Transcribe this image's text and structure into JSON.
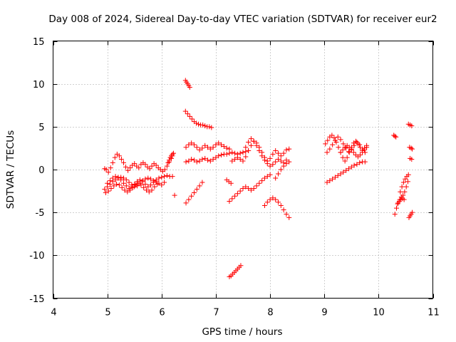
{
  "chart_data": {
    "type": "scatter",
    "title": "Day 008 of 2024, Sidereal Day-to-day VTEC variation (SDTVAR) for receiver eur2",
    "xlabel": "GPS time / hours",
    "ylabel": "SDTVAR / TECUs",
    "xlim": [
      4,
      11
    ],
    "ylim": [
      -15,
      15
    ],
    "xticks": [
      "4",
      "5",
      "6",
      "7",
      "8",
      "9",
      "10",
      "11"
    ],
    "yticks": [
      "-15",
      "-10",
      "-5",
      "0",
      "5",
      "10",
      "15"
    ],
    "grid": true,
    "marker": "plus",
    "color": "#ff0000",
    "series": [
      {
        "x": [
          4.95,
          4.98,
          5.02,
          5.06,
          5.1,
          5.14,
          5.18,
          5.22,
          5.26,
          5.3,
          5.34,
          5.38,
          5.42,
          5.46,
          5.5,
          5.54,
          5.58,
          5.62,
          5.66,
          5.7,
          5.74,
          5.78,
          5.82,
          5.86,
          5.9,
          5.94,
          5.98,
          6.02,
          6.06,
          6.1,
          6.14,
          6.18,
          6.2
        ],
        "y": [
          0.1,
          0.0,
          -0.3,
          0.2,
          0.8,
          1.4,
          1.8,
          1.6,
          1.2,
          0.8,
          0.3,
          -0.1,
          0.2,
          0.5,
          0.7,
          0.4,
          0.2,
          0.6,
          0.8,
          0.6,
          0.3,
          0.1,
          0.4,
          0.7,
          0.5,
          0.2,
          0.0,
          -0.2,
          0.0,
          0.4,
          0.9,
          1.3,
          1.6
        ]
      },
      {
        "x": [
          4.95,
          5.0,
          5.05,
          5.1,
          5.15,
          5.2,
          5.25,
          5.3,
          5.35,
          5.4,
          5.45,
          5.5,
          5.55,
          5.6,
          5.65,
          5.7,
          5.75,
          5.8,
          5.85,
          5.9,
          5.95,
          6.0,
          6.05,
          6.1,
          6.15,
          6.2
        ],
        "y": [
          -2.3,
          -2.0,
          -1.7,
          -1.4,
          -1.2,
          -1.0,
          -0.9,
          -1.0,
          -1.2,
          -1.5,
          -1.8,
          -2.0,
          -1.9,
          -1.6,
          -1.3,
          -1.1,
          -1.0,
          -1.1,
          -1.3,
          -1.2,
          -1.0,
          -0.9,
          -0.8,
          -0.7,
          -0.8,
          -0.8
        ]
      },
      {
        "x": [
          4.97,
          5.02,
          5.07,
          5.12,
          5.17,
          5.22,
          5.27,
          5.32,
          5.37,
          5.42,
          5.47,
          5.52,
          5.57,
          5.62,
          5.67,
          5.72,
          5.77,
          5.82,
          5.87,
          5.92
        ],
        "y": [
          -2.7,
          -2.5,
          -2.2,
          -1.9,
          -1.7,
          -1.8,
          -2.1,
          -2.4,
          -2.6,
          -2.4,
          -2.1,
          -1.8,
          -1.6,
          -1.8,
          -2.1,
          -2.4,
          -2.6,
          -2.4,
          -2.0,
          -1.7
        ]
      },
      {
        "x": [
          5.0,
          5.05,
          5.1,
          5.15,
          5.2,
          5.25,
          5.3,
          5.35,
          5.4,
          5.45,
          5.5,
          5.55,
          5.6,
          5.65,
          5.7,
          5.75,
          5.8,
          5.85,
          5.9,
          5.95,
          6.0,
          6.05
        ],
        "y": [
          -1.6,
          -1.3,
          -1.0,
          -0.8,
          -0.9,
          -1.2,
          -1.6,
          -1.9,
          -2.2,
          -2.0,
          -1.7,
          -1.4,
          -1.2,
          -1.4,
          -1.7,
          -2.0,
          -1.8,
          -1.5,
          -1.4,
          -1.6,
          -1.8,
          -1.5
        ]
      },
      {
        "x": [
          6.12,
          6.14,
          6.16,
          6.18,
          6.2,
          6.22
        ],
        "y": [
          0.8,
          1.1,
          1.4,
          1.6,
          1.8,
          1.9
        ]
      },
      {
        "x": [
          6.24
        ],
        "y": [
          -3.0
        ]
      },
      {
        "x": [
          6.44,
          6.46,
          6.48,
          6.5,
          6.52
        ],
        "y": [
          10.4,
          10.2,
          10.0,
          9.8,
          9.6
        ]
      },
      {
        "x": [
          6.44,
          6.48,
          6.52,
          6.56,
          6.6,
          6.64,
          6.68,
          6.72,
          6.76,
          6.8,
          6.84,
          6.88,
          6.92
        ],
        "y": [
          6.8,
          6.5,
          6.2,
          5.9,
          5.6,
          5.4,
          5.3,
          5.2,
          5.2,
          5.1,
          5.0,
          5.0,
          4.9
        ]
      },
      {
        "x": [
          6.45,
          6.5,
          6.55,
          6.6,
          6.65,
          6.7,
          6.75,
          6.8,
          6.85,
          6.9,
          6.95,
          7.0,
          7.05,
          7.1,
          7.15,
          7.2,
          7.25
        ],
        "y": [
          2.6,
          2.9,
          3.1,
          2.9,
          2.6,
          2.3,
          2.5,
          2.8,
          2.6,
          2.4,
          2.6,
          2.9,
          3.1,
          2.9,
          2.7,
          2.5,
          2.4
        ]
      },
      {
        "x": [
          6.45,
          6.5,
          6.55,
          6.6,
          6.65,
          6.7,
          6.75,
          6.8,
          6.85,
          6.9,
          6.95,
          7.0,
          7.05,
          7.1,
          7.15,
          7.2,
          7.25,
          7.3,
          7.35,
          7.4,
          7.45,
          7.5,
          7.55,
          7.6
        ],
        "y": [
          0.9,
          1.0,
          1.2,
          1.1,
          0.9,
          1.0,
          1.2,
          1.3,
          1.1,
          1.0,
          1.2,
          1.4,
          1.6,
          1.7,
          1.8,
          1.8,
          1.9,
          2.0,
          1.9,
          1.8,
          1.9,
          2.0,
          2.1,
          2.2
        ]
      },
      {
        "x": [
          6.45,
          6.5,
          6.55,
          6.6,
          6.65,
          6.7,
          6.75
        ],
        "y": [
          -3.9,
          -3.5,
          -3.1,
          -2.7,
          -2.3,
          -1.9,
          -1.5
        ]
      },
      {
        "x": [
          7.2,
          7.24,
          7.28
        ],
        "y": [
          -1.2,
          -1.4,
          -1.6
        ]
      },
      {
        "x": [
          7.25,
          7.3,
          7.35,
          7.4,
          7.45,
          7.5,
          7.55,
          7.6,
          7.65,
          7.7,
          7.75,
          7.8,
          7.85,
          7.9,
          7.95,
          8.0
        ],
        "y": [
          -3.7,
          -3.4,
          -3.1,
          -2.8,
          -2.5,
          -2.2,
          -2.0,
          -2.2,
          -2.4,
          -2.2,
          -1.9,
          -1.6,
          -1.3,
          -1.0,
          -0.8,
          -0.6
        ]
      },
      {
        "x": [
          7.25,
          7.28,
          7.31,
          7.34,
          7.37,
          7.4,
          7.43,
          7.46
        ],
        "y": [
          -12.5,
          -12.4,
          -12.2,
          -12.0,
          -11.8,
          -11.6,
          -11.4,
          -11.2
        ]
      },
      {
        "x": [
          7.3,
          7.35,
          7.4,
          7.45,
          7.5,
          7.55,
          7.6,
          7.65,
          7.7,
          7.75,
          7.8,
          7.85,
          7.9,
          7.95,
          8.0,
          8.05,
          8.1,
          8.15,
          8.2,
          8.25,
          8.3,
          8.35
        ],
        "y": [
          1.0,
          1.2,
          1.4,
          1.2,
          1.0,
          1.5,
          2.2,
          2.8,
          3.3,
          3.1,
          2.6,
          2.0,
          1.4,
          1.0,
          1.3,
          1.8,
          2.2,
          1.9,
          1.6,
          1.9,
          2.3,
          2.4
        ]
      },
      {
        "x": [
          7.5,
          7.55,
          7.6,
          7.65,
          7.7,
          7.75,
          7.8,
          7.85,
          7.9,
          7.95,
          8.0,
          8.05,
          8.1,
          8.15,
          8.2,
          8.25,
          8.3
        ],
        "y": [
          2.0,
          2.6,
          3.2,
          3.6,
          3.3,
          2.8,
          2.2,
          1.6,
          1.1,
          0.7,
          0.4,
          0.6,
          0.9,
          1.2,
          1.0,
          0.8,
          1.1
        ]
      },
      {
        "x": [
          7.9,
          7.95,
          8.0,
          8.05,
          8.1,
          8.15,
          8.2,
          8.25,
          8.3,
          8.35
        ],
        "y": [
          -4.2,
          -3.8,
          -3.5,
          -3.3,
          -3.5,
          -3.8,
          -4.2,
          -4.7,
          -5.2,
          -5.6
        ]
      },
      {
        "x": [
          8.1,
          8.15,
          8.2,
          8.25,
          8.3,
          8.35
        ],
        "y": [
          -1.0,
          -0.5,
          0.0,
          0.4,
          0.7,
          0.9
        ]
      },
      {
        "x": [
          9.05,
          9.1,
          9.15,
          9.2,
          9.25,
          9.3,
          9.35,
          9.4,
          9.45,
          9.5,
          9.55,
          9.6,
          9.65,
          9.7,
          9.75
        ],
        "y": [
          -1.5,
          -1.3,
          -1.1,
          -0.9,
          -0.7,
          -0.5,
          -0.3,
          -0.1,
          0.1,
          0.3,
          0.5,
          0.6,
          0.8,
          0.9,
          0.9
        ]
      },
      {
        "x": [
          9.02,
          9.06,
          9.1,
          9.14,
          9.18,
          9.22,
          9.26,
          9.3,
          9.34,
          9.38,
          9.42,
          9.46,
          9.5,
          9.54,
          9.58,
          9.62,
          9.66,
          9.7,
          9.74,
          9.78
        ],
        "y": [
          3.0,
          3.4,
          3.8,
          4.0,
          3.7,
          3.2,
          2.6,
          2.0,
          1.4,
          1.0,
          1.4,
          2.0,
          2.6,
          3.1,
          3.3,
          3.0,
          2.6,
          2.2,
          2.5,
          2.8
        ]
      },
      {
        "x": [
          9.05,
          9.1,
          9.15,
          9.2,
          9.25,
          9.3,
          9.35,
          9.4,
          9.45,
          9.5,
          9.55,
          9.6,
          9.65,
          9.7,
          9.75
        ],
        "y": [
          2.0,
          2.4,
          2.9,
          3.4,
          3.8,
          3.5,
          3.0,
          2.5,
          2.1,
          2.4,
          2.8,
          3.2,
          2.9,
          2.4,
          2.0
        ]
      },
      {
        "x": [
          9.3,
          9.34,
          9.38,
          9.42,
          9.46,
          9.5,
          9.54,
          9.58,
          9.62,
          9.66,
          9.7,
          9.74,
          9.78
        ],
        "y": [
          2.0,
          2.3,
          2.6,
          2.8,
          2.6,
          2.3,
          2.0,
          1.7,
          1.5,
          1.7,
          2.0,
          2.3,
          2.6
        ]
      },
      {
        "x": [
          10.28,
          10.3,
          10.32
        ],
        "y": [
          4.0,
          3.9,
          3.8
        ]
      },
      {
        "x": [
          10.3,
          10.33,
          10.36,
          10.39,
          10.42,
          10.45,
          10.48,
          10.51,
          10.54
        ],
        "y": [
          -5.2,
          -4.5,
          -3.9,
          -3.5,
          -3.2,
          -3.0,
          -2.6,
          -2.0,
          -1.4
        ]
      },
      {
        "x": [
          10.4,
          10.43,
          10.46,
          10.49,
          10.52,
          10.55
        ],
        "y": [
          -2.6,
          -2.0,
          -1.5,
          -1.1,
          -0.8,
          -0.6
        ]
      },
      {
        "x": [
          10.35,
          10.38,
          10.41,
          10.44,
          10.47
        ],
        "y": [
          -4.0,
          -3.7,
          -3.5,
          -3.4,
          -3.5
        ]
      },
      {
        "x": [
          10.55,
          10.58,
          10.61
        ],
        "y": [
          5.3,
          5.2,
          5.1
        ]
      },
      {
        "x": [
          10.57,
          10.6,
          10.62
        ],
        "y": [
          2.6,
          2.5,
          2.4
        ]
      },
      {
        "x": [
          10.58,
          10.61
        ],
        "y": [
          1.3,
          1.2
        ]
      },
      {
        "x": [
          10.56,
          10.58,
          10.6,
          10.62
        ],
        "y": [
          -5.6,
          -5.4,
          -5.2,
          -5.0
        ]
      }
    ]
  }
}
